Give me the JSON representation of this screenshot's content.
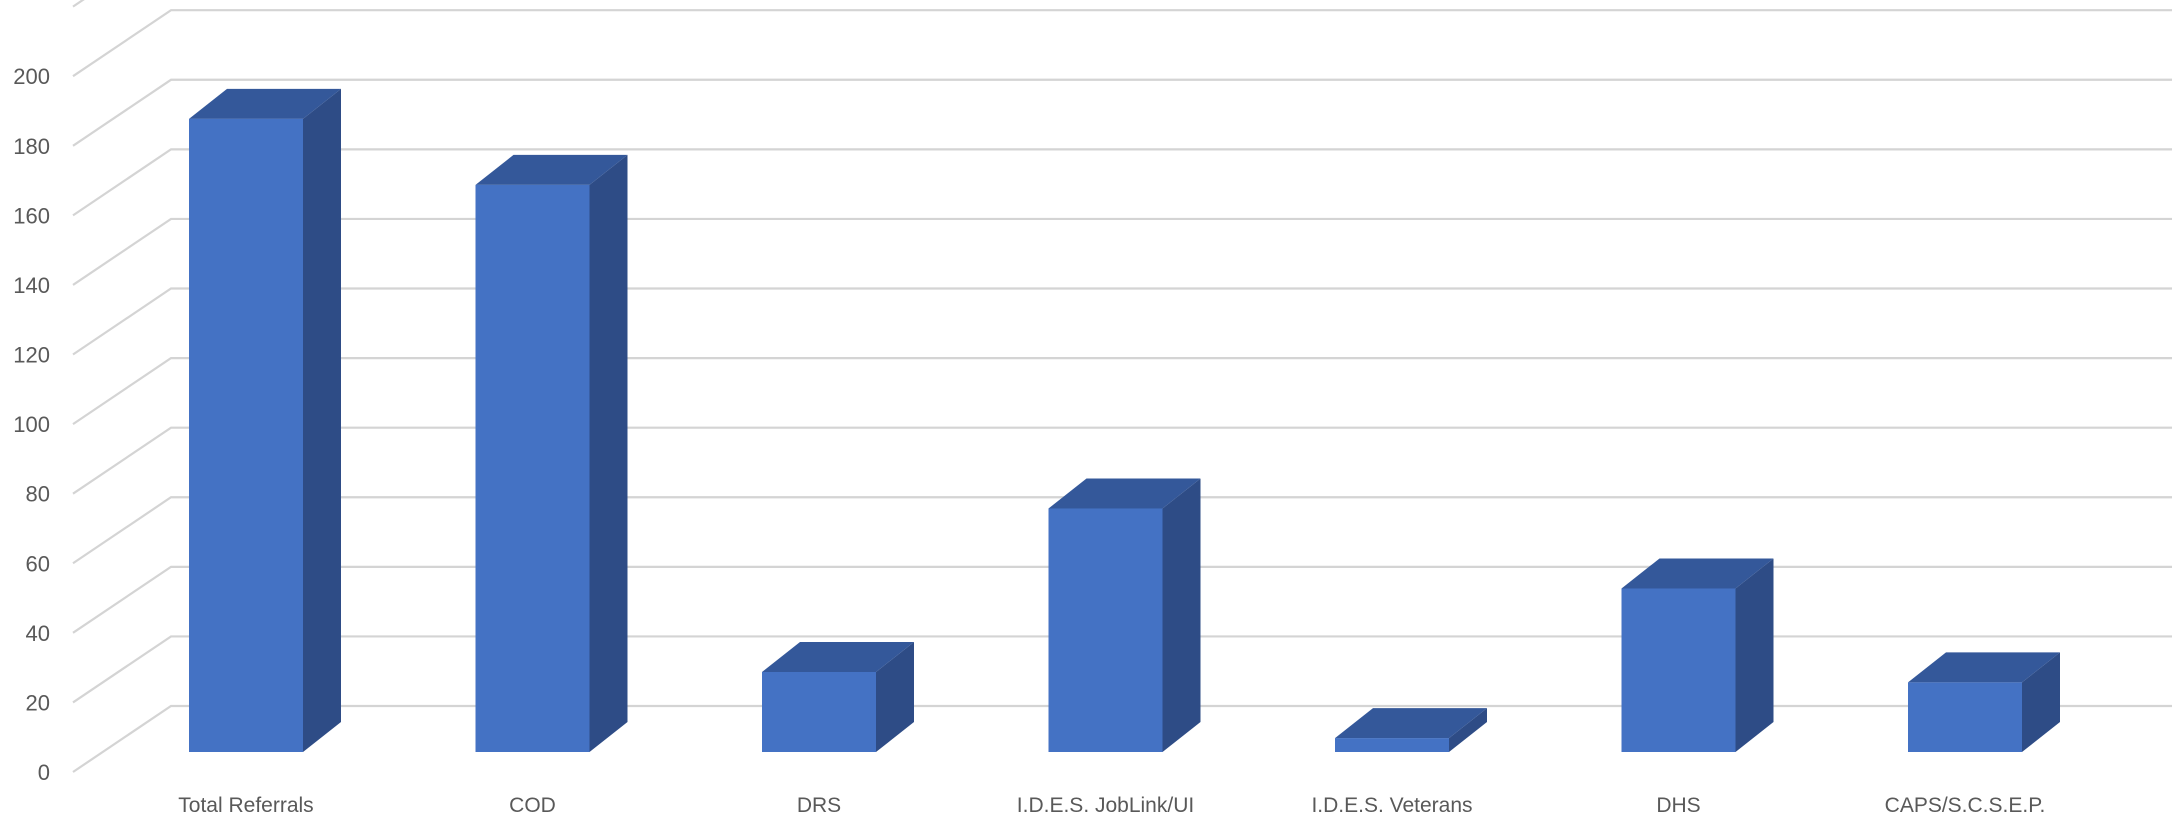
{
  "chart_data": {
    "type": "bar",
    "title": "",
    "xlabel": "",
    "ylabel": "",
    "categories": [
      "Total Referrals",
      "COD",
      "DRS",
      "I.D.E.S. JobLink/UI",
      "I.D.E.S. Veterans",
      "DHS",
      "CAPS/S.C.S.E.P."
    ],
    "values": [
      182,
      163,
      23,
      70,
      4,
      47,
      20
    ],
    "ylim": [
      0,
      220
    ],
    "yticks": [
      0,
      20,
      40,
      60,
      80,
      100,
      120,
      140,
      160,
      180,
      200
    ],
    "grid": true,
    "legend": "none",
    "style": "3d-column",
    "colors": {
      "front": "#4472C4",
      "side": "#2E4C86",
      "top": "#34589A",
      "grid": "#D4D4D4",
      "text": "#595959"
    }
  }
}
